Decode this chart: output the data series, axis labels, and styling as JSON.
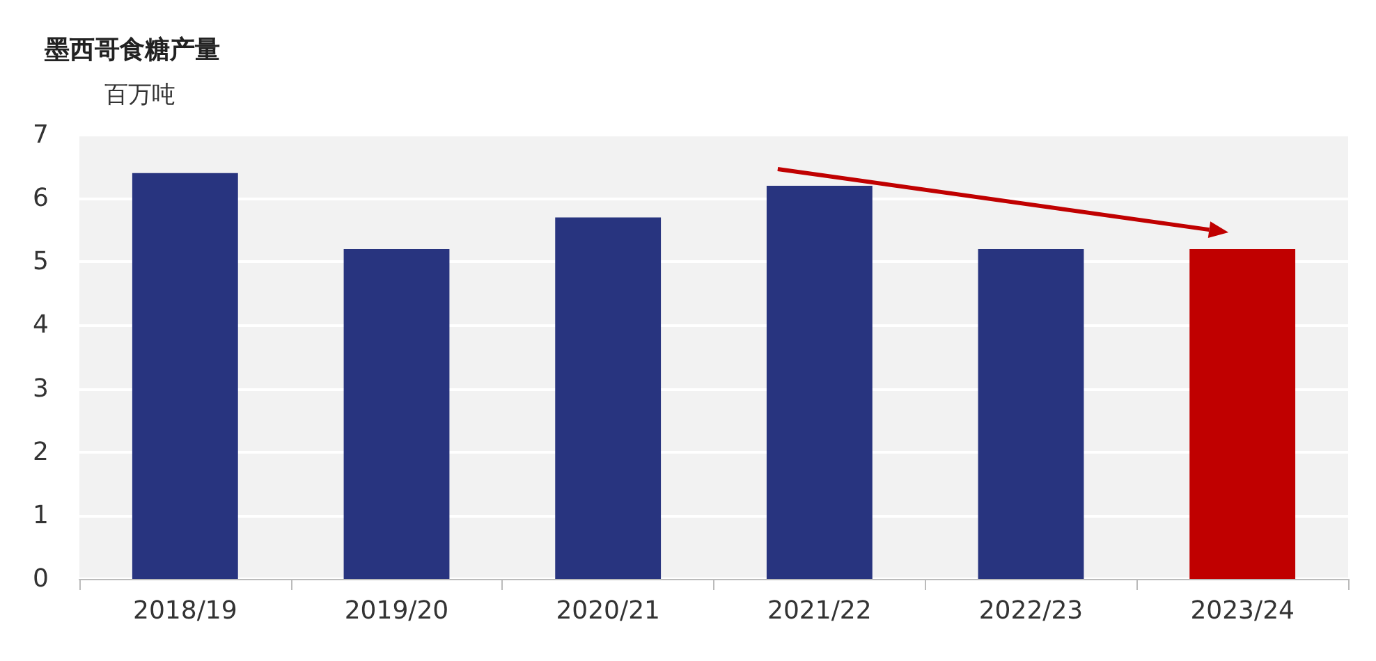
{
  "chart_data": {
    "type": "bar",
    "title": "墨西哥食糖产量",
    "ylabel": "百万吨",
    "categories": [
      "2018/19",
      "2019/20",
      "2020/21",
      "2021/22",
      "2022/23",
      "2023/24"
    ],
    "values": [
      6.4,
      5.2,
      5.7,
      6.2,
      5.2,
      5.2
    ],
    "colors": [
      "#28347f",
      "#28347f",
      "#28347f",
      "#28347f",
      "#28347f",
      "#c00000"
    ],
    "ylim": [
      0,
      7
    ],
    "yticks": [
      0,
      1,
      2,
      3,
      4,
      5,
      6,
      7
    ],
    "grid": "y"
  }
}
